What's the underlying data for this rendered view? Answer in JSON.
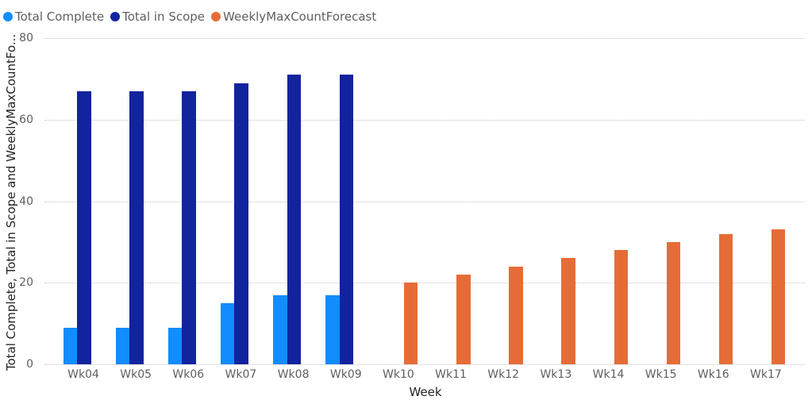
{
  "legend": [
    {
      "label": "Total Complete",
      "color": "#118DFF"
    },
    {
      "label": "Total in Scope",
      "color": "#12239E"
    },
    {
      "label": "WeeklyMaxCountForecast",
      "color": "#E66C37"
    }
  ],
  "axes": {
    "y_title": "Total Complete, Total in Scope and WeeklyMaxCountFo...",
    "x_title": "Week",
    "y_ticks": [
      "0",
      "20",
      "40",
      "60",
      "80"
    ]
  },
  "chart_data": {
    "type": "bar",
    "title": "",
    "xlabel": "Week",
    "ylabel": "Total Complete, Total in Scope and WeeklyMaxCountFo...",
    "ylim": [
      0,
      80
    ],
    "y_ticks": [
      0,
      20,
      40,
      60,
      80
    ],
    "grid": true,
    "legend_position": "top-left",
    "categories": [
      "Wk04",
      "Wk05",
      "Wk06",
      "Wk07",
      "Wk08",
      "Wk09",
      "Wk10",
      "Wk11",
      "Wk12",
      "Wk13",
      "Wk14",
      "Wk15",
      "Wk16",
      "Wk17"
    ],
    "series": [
      {
        "name": "Total Complete",
        "color": "#118DFF",
        "values": [
          9,
          9,
          9,
          15,
          17,
          17,
          null,
          null,
          null,
          null,
          null,
          null,
          null,
          null
        ]
      },
      {
        "name": "Total in Scope",
        "color": "#12239E",
        "values": [
          67,
          67,
          67,
          69,
          71,
          71,
          null,
          null,
          null,
          null,
          null,
          null,
          null,
          null
        ]
      },
      {
        "name": "WeeklyMaxCountForecast",
        "color": "#E66C37",
        "values": [
          null,
          null,
          null,
          null,
          null,
          null,
          20,
          22,
          24,
          26,
          28,
          30,
          32,
          33
        ]
      }
    ]
  }
}
